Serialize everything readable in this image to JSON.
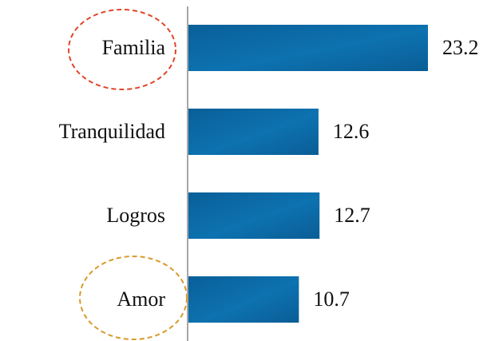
{
  "chart_data": {
    "type": "bar",
    "orientation": "horizontal",
    "categories": [
      "Familia",
      "Tranquilidad",
      "Logros",
      "Amor"
    ],
    "values": [
      23.2,
      12.6,
      12.7,
      10.7
    ],
    "color": "#0b68a4"
  }
}
